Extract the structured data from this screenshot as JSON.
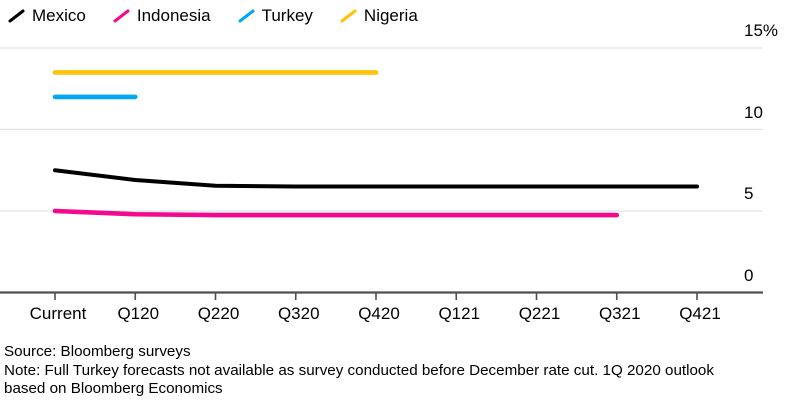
{
  "legend": {
    "items": [
      {
        "label": "Mexico",
        "color": "#000000"
      },
      {
        "label": "Indonesia",
        "color": "#f4088c"
      },
      {
        "label": "Turkey",
        "color": "#00a8f3"
      },
      {
        "label": "Nigeria",
        "color": "#fdc30a"
      }
    ]
  },
  "chart_data": {
    "type": "line",
    "title": "",
    "xlabel": "",
    "ylabel": "",
    "unit": "%",
    "categories": [
      "Current",
      "Q120",
      "Q220",
      "Q320",
      "Q420",
      "Q121",
      "Q221",
      "Q321",
      "Q421"
    ],
    "series": [
      {
        "name": "Mexico",
        "color": "#000000",
        "values": [
          7.5,
          6.9,
          6.55,
          6.5,
          6.5,
          6.5,
          6.5,
          6.5,
          6.5
        ]
      },
      {
        "name": "Indonesia",
        "color": "#f4088c",
        "values": [
          5.0,
          4.8,
          4.75,
          4.75,
          4.75,
          4.75,
          4.75,
          4.75,
          null
        ]
      },
      {
        "name": "Turkey",
        "color": "#00a8f3",
        "values": [
          12.0,
          12.0,
          null,
          null,
          null,
          null,
          null,
          null,
          null
        ]
      },
      {
        "name": "Nigeria",
        "color": "#fdc30a",
        "values": [
          13.5,
          13.5,
          13.5,
          13.5,
          13.5,
          null,
          null,
          null,
          null
        ]
      }
    ],
    "ylim": [
      0,
      15
    ],
    "yticks": [
      {
        "value": 15,
        "label": "15%"
      },
      {
        "value": 10,
        "label": "10"
      },
      {
        "value": 5,
        "label": "5"
      },
      {
        "value": 0,
        "label": "0"
      }
    ],
    "grid": "horizontal",
    "legend_position": "top-left"
  },
  "footer": {
    "source": "Source: Bloomberg surveys",
    "note": "Note: Full Turkey forecasts not available as survey conducted before December rate cut. 1Q 2020 outlook based on Bloomberg Economics"
  },
  "colors": {
    "background": "#ffffff",
    "grid": "#e4e4e4",
    "axis": "#4f4f4f",
    "text": "#000000"
  }
}
